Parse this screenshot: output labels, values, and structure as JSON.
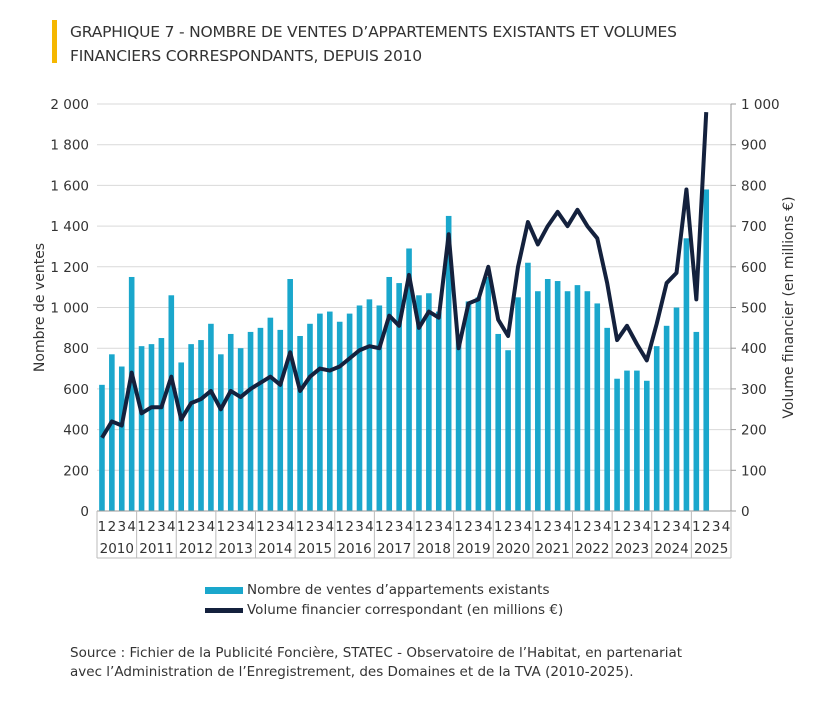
{
  "title_line1": "GRAPHIQUE 7 - NOMBRE DE VENTES D’APPARTEMENTS EXISTANTS ET VOLUMES",
  "title_line2": "FINANCIERS CORRESPONDANTS, DEPUIS 2010",
  "colors": {
    "accent": "#f5b700",
    "bars": "#1aa7cc",
    "line": "#14213d",
    "grid": "#d9d9d9"
  },
  "chart_data": {
    "type": "bar+line",
    "years": [
      "2010",
      "2011",
      "2012",
      "2013",
      "2014",
      "2015",
      "2016",
      "2017",
      "2018",
      "2019",
      "2020",
      "2021",
      "2022",
      "2023",
      "2024",
      "2025"
    ],
    "quarters": [
      "1",
      "2",
      "3",
      "4"
    ],
    "ylabel": "Nombre de ventes",
    "y2label": "Volume financier (en millions €)",
    "ylim": [
      0,
      2000
    ],
    "y2lim": [
      0,
      1000
    ],
    "yticks": [
      "0",
      "200",
      "400",
      "600",
      "800",
      "1 000",
      "1 200",
      "1 400",
      "1 600",
      "1 800",
      "2 000"
    ],
    "y2ticks": [
      "0",
      "100",
      "200",
      "300",
      "400",
      "500",
      "600",
      "700",
      "800",
      "900",
      "1 000"
    ],
    "series": [
      {
        "name": "Nombre de ventes d’appartements existants",
        "type": "bar",
        "axis": "left",
        "values": [
          620,
          770,
          710,
          1150,
          810,
          820,
          850,
          1060,
          730,
          820,
          840,
          920,
          770,
          870,
          800,
          880,
          900,
          950,
          890,
          1140,
          860,
          920,
          970,
          980,
          930,
          970,
          1010,
          1040,
          1010,
          1150,
          1120,
          1290,
          1060,
          1070,
          980,
          1450,
          860,
          1030,
          1050,
          1150,
          870,
          790,
          1050,
          1220,
          1080,
          1140,
          1130,
          1080,
          1110,
          1080,
          1020,
          900,
          650,
          690,
          690,
          640,
          810,
          910,
          1000,
          1340,
          880,
          1580
        ]
      },
      {
        "name": "Volume financier correspondant (en millions €)",
        "type": "line",
        "axis": "right",
        "values": [
          180,
          220,
          210,
          340,
          240,
          255,
          255,
          330,
          225,
          265,
          275,
          295,
          250,
          295,
          280,
          300,
          315,
          330,
          310,
          390,
          295,
          330,
          350,
          345,
          355,
          375,
          395,
          405,
          400,
          480,
          455,
          580,
          450,
          490,
          475,
          680,
          400,
          510,
          520,
          600,
          470,
          430,
          600,
          710,
          655,
          700,
          735,
          700,
          740,
          700,
          670,
          560,
          420,
          455,
          410,
          370,
          460,
          560,
          585,
          790,
          520,
          980
        ]
      }
    ],
    "legend": "bottom"
  },
  "source_line1": "Source : Fichier de la Publicité Foncière, STATEC - Observatoire de l’Habitat, en partenariat",
  "source_line2": "avec l’Administration de l’Enregistrement, des Domaines et de la TVA (2010-2025)."
}
